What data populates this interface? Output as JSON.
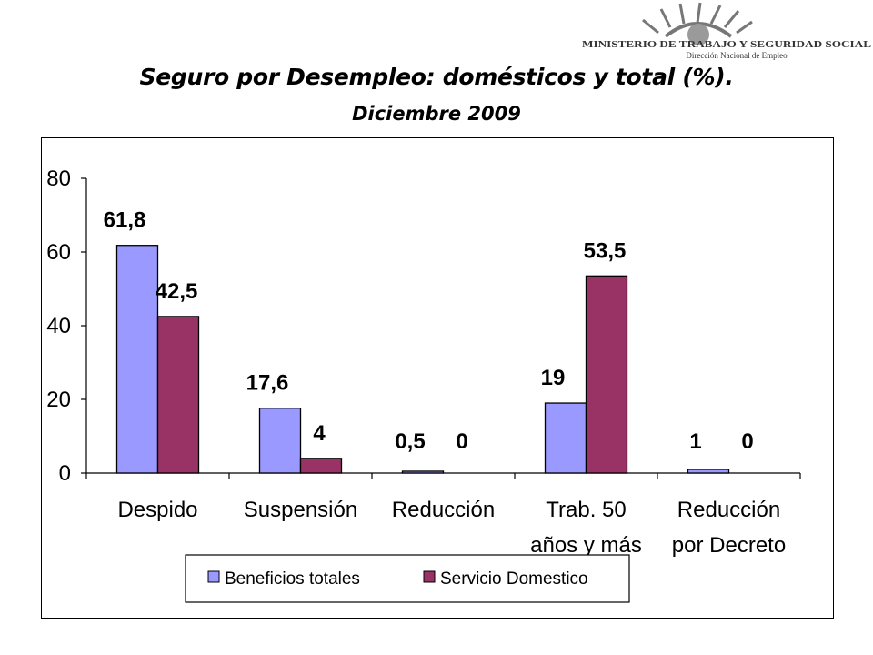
{
  "logo": {
    "line1": "MINISTERIO DE TRABAJO Y SEGURIDAD SOCIAL",
    "line2": "Dirección Nacional de Empleo",
    "icon": "sun-emblem-icon"
  },
  "header": {
    "title": "Seguro por Desempleo: domésticos y total (%).",
    "subtitle": "Diciembre 2009"
  },
  "colors": {
    "series1": "#9999FF",
    "series2": "#993366",
    "axis": "#000000"
  },
  "chart_data": {
    "type": "bar",
    "categories": [
      [
        "Despido"
      ],
      [
        "Suspensión"
      ],
      [
        "Reducción"
      ],
      [
        "Trab. 50",
        "años y más"
      ],
      [
        "Reducción",
        "por Decreto"
      ]
    ],
    "series": [
      {
        "name": "Beneficios totales",
        "values": [
          61.8,
          17.6,
          0.5,
          19,
          1
        ],
        "labels": [
          "61,8",
          "17,6",
          "0,5",
          "19",
          "1"
        ]
      },
      {
        "name": "Servicio Domestico",
        "values": [
          42.5,
          4,
          0,
          53.5,
          0
        ],
        "labels": [
          "42,5",
          "4",
          "0",
          "53,5",
          "0"
        ]
      }
    ],
    "yticks": [
      0,
      20,
      40,
      60,
      80
    ],
    "ylim": [
      0,
      80
    ],
    "legend": "bottom",
    "grid": false
  }
}
